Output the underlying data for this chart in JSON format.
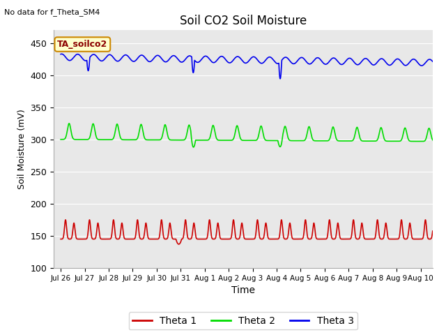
{
  "title": "Soil CO2 Soil Moisture",
  "no_data_text": "No data for f_Theta_SM4",
  "annotation_text": "TA_soilco2",
  "xlabel": "Time",
  "ylabel": "Soil Moisture (mV)",
  "ylim": [
    100,
    470
  ],
  "yticks": [
    100,
    150,
    200,
    250,
    300,
    350,
    400,
    450
  ],
  "x_tick_labels": [
    "Jul 26",
    "Jul 27",
    "Jul 28",
    "Jul 29",
    "Jul 30",
    "Jul 31",
    "Aug 1",
    "Aug 2",
    "Aug 3",
    "Aug 4",
    "Aug 5",
    "Aug 6",
    "Aug 7",
    "Aug 8",
    "Aug 9",
    "Aug 10"
  ],
  "colors": {
    "theta1": "#cc0000",
    "theta2": "#00dd00",
    "theta3": "#0000ee",
    "background": "#e8e8e8",
    "annotation_bg": "#ffffcc",
    "annotation_border": "#cc8800"
  },
  "legend": [
    "Theta 1",
    "Theta 2",
    "Theta 3"
  ],
  "figsize": [
    6.4,
    4.8
  ],
  "dpi": 100
}
